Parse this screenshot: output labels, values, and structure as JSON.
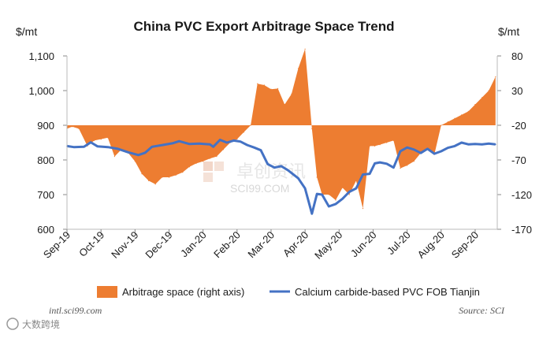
{
  "chart_data": {
    "type": "line+area",
    "title": "China PVC Export Arbitrage Space Trend",
    "left_unit": "$/mt",
    "right_unit": "$/mt",
    "left_axis": {
      "min": 600,
      "max": 1100,
      "ticks": [
        600,
        700,
        800,
        900,
        1000,
        1100
      ],
      "tick_labels": [
        "600",
        "700",
        "800",
        "900",
        "1,000",
        "1,100"
      ]
    },
    "right_axis": {
      "min": -170,
      "max": 80,
      "ticks": [
        -170,
        -120,
        -70,
        -20,
        30,
        80
      ],
      "tick_labels": [
        "-170",
        "-120",
        "-70",
        "-20",
        "30",
        "80"
      ]
    },
    "x_labels": [
      "Sep-19",
      "Oct-19",
      "Nov-19",
      "Dec-19",
      "Jan-20",
      "Feb-20",
      "Mar-20",
      "Apr-20",
      "May-20",
      "Jun-20",
      "Jul-20",
      "Aug-20",
      "Sep-20"
    ],
    "series": [
      {
        "name": "Arbitrage space (right axis)",
        "type": "area",
        "axis": "right",
        "color": "#ED7D31",
        "x": [
          0,
          0.15,
          0.35,
          0.6,
          0.8,
          1,
          1.2,
          1.4,
          1.6,
          1.8,
          2,
          2.2,
          2.4,
          2.6,
          2.8,
          3,
          3.2,
          3.4,
          3.6,
          3.8,
          4,
          4.2,
          4.4,
          4.6,
          4.8,
          5,
          5.2,
          5.4,
          5.6,
          5.8,
          6,
          6.2,
          6.4,
          6.6,
          6.8,
          7,
          7.2,
          7.35,
          7.5,
          7.7,
          7.9,
          8.1,
          8.3,
          8.5,
          8.7,
          8.9,
          9.05,
          9.2,
          9.4,
          9.6,
          9.8,
          10,
          10.2,
          10.4,
          10.6,
          10.8,
          11,
          11.2,
          11.4,
          11.6,
          11.8,
          12,
          12.2,
          12.4,
          12.6
        ],
        "values": [
          -25,
          -22,
          -25,
          -50,
          -42,
          -40,
          -38,
          -65,
          -55,
          -60,
          -72,
          -90,
          -100,
          -105,
          -95,
          -95,
          -92,
          -88,
          -80,
          -75,
          -72,
          -68,
          -65,
          -55,
          -45,
          -40,
          -30,
          -20,
          40,
          38,
          32,
          33,
          10,
          25,
          62,
          90,
          -25,
          -95,
          -120,
          -120,
          -128,
          -110,
          -120,
          -100,
          -140,
          -50,
          -50,
          -48,
          -45,
          -42,
          -82,
          -78,
          -72,
          -60,
          -55,
          -62,
          -20,
          -15,
          -10,
          -5,
          0,
          10,
          20,
          30,
          50
        ]
      },
      {
        "name": "Calcium carbide-based PVC FOB Tianjin",
        "type": "line",
        "axis": "left",
        "color": "#4472C4",
        "x": [
          0,
          0.2,
          0.5,
          0.7,
          0.9,
          1.2,
          1.5,
          1.8,
          2.1,
          2.3,
          2.5,
          2.8,
          3.1,
          3.3,
          3.6,
          3.9,
          4.2,
          4.3,
          4.5,
          4.7,
          4.9,
          5.1,
          5.3,
          5.5,
          5.7,
          5.9,
          6.1,
          6.3,
          6.5,
          6.8,
          7,
          7.2,
          7.35,
          7.5,
          7.7,
          7.9,
          8.1,
          8.3,
          8.5,
          8.7,
          8.9,
          9.05,
          9.2,
          9.4,
          9.6,
          9.8,
          10,
          10.2,
          10.4,
          10.6,
          10.8,
          11,
          11.2,
          11.4,
          11.6,
          11.8,
          12,
          12.2,
          12.4,
          12.6
        ],
        "values": [
          840,
          837,
          838,
          851,
          839,
          837,
          832,
          822,
          814,
          821,
          838,
          843,
          848,
          854,
          846,
          847,
          845,
          838,
          858,
          850,
          856,
          853,
          843,
          836,
          828,
          788,
          778,
          782,
          770,
          747,
          718,
          645,
          702,
          700,
          666,
          673,
          688,
          708,
          718,
          758,
          760,
          790,
          793,
          789,
          778,
          825,
          836,
          830,
          820,
          832,
          818,
          825,
          835,
          840,
          850,
          845,
          846,
          845,
          847,
          845
        ]
      }
    ],
    "source": "Source: SCI",
    "website": "intl.sci99.com",
    "watermark": "SCI99.COM",
    "watermark_cn": "卓创资讯",
    "corner_logo": "大数跨境"
  }
}
